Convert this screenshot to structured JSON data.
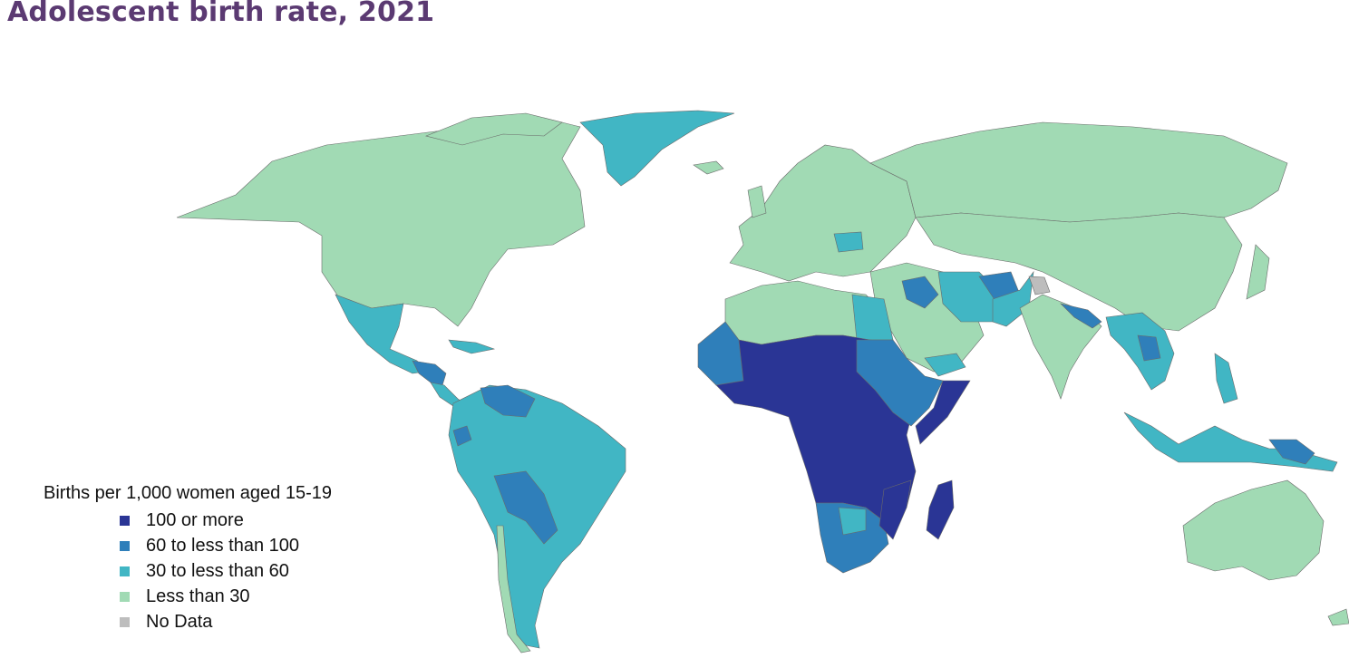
{
  "title": "Adolescent birth rate, 2021",
  "legend": {
    "title": "Births per 1,000 women aged 15-19",
    "items": [
      {
        "label": "100 or more",
        "color": "#2a3595"
      },
      {
        "label": "60 to less than 100",
        "color": "#2f7fba"
      },
      {
        "label": "30 to less than 60",
        "color": "#41b6c4"
      },
      {
        "label": "Less than 30",
        "color": "#a1dab4"
      },
      {
        "label": "No Data",
        "color": "#bdbdbd"
      }
    ]
  },
  "colors": {
    "c100": "#2a3595",
    "c60": "#2f7fba",
    "c30": "#41b6c4",
    "c0": "#a1dab4",
    "nodata": "#bdbdbd",
    "title": "#5b3a72"
  }
}
